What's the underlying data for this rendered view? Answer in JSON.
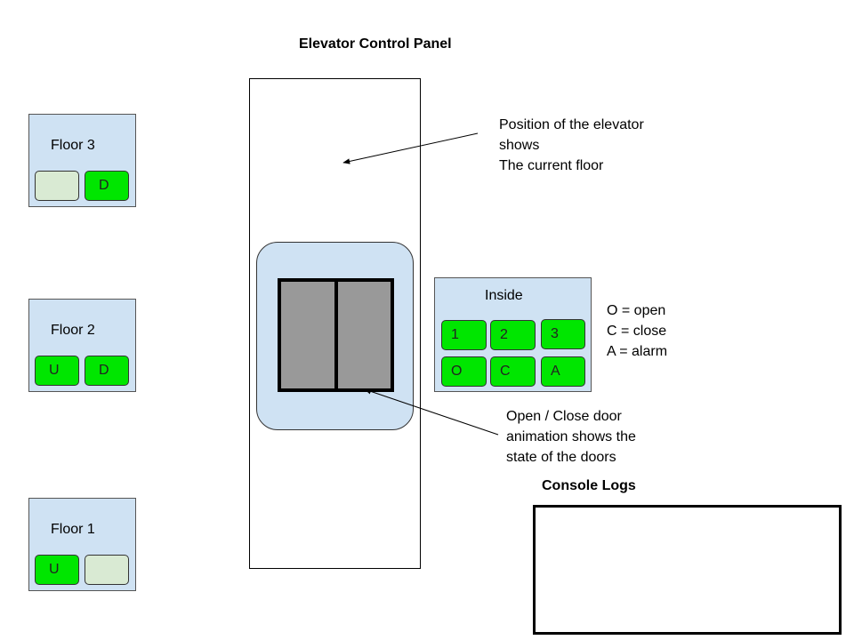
{
  "title": "Elevator Control Panel",
  "colors": {
    "panel_bg": "#cfe2f3",
    "button_active": "#00e600",
    "button_inactive": "#d9ead3",
    "door": "#999999"
  },
  "floors": [
    {
      "label": "Floor 3",
      "up": "",
      "down": "D",
      "up_active": false,
      "down_active": true
    },
    {
      "label": "Floor 2",
      "up": "U",
      "down": "D",
      "up_active": true,
      "down_active": true
    },
    {
      "label": "Floor 1",
      "up": "U",
      "down": "",
      "up_active": true,
      "down_active": false
    }
  ],
  "inside_panel": {
    "label": "Inside",
    "buttons": [
      "1",
      "2",
      "3",
      "O",
      "C",
      "A"
    ]
  },
  "legend": [
    "O = open",
    "C = close",
    "A = alarm"
  ],
  "annotations": {
    "position": [
      "Position of the elevator",
      "shows",
      "The current floor"
    ],
    "doors": [
      "Open / Close door",
      "animation shows the",
      "state of the doors"
    ]
  },
  "console": {
    "title": "Console Logs",
    "content": ""
  }
}
